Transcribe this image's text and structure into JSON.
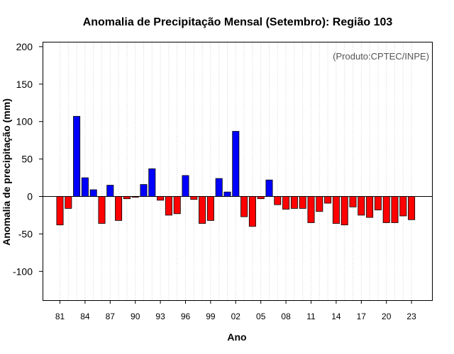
{
  "chart_data": {
    "type": "bar",
    "title": "Anomalia de Precipitação Mensal (Setembro): Região 103",
    "xlabel": "Ano",
    "ylabel": "Anomalia de precipitação (mm)",
    "credit": "(Produto:CPTEC/INPE)",
    "ylim": [
      -140,
      208
    ],
    "yticks": [
      -100,
      -50,
      0,
      50,
      100,
      150,
      200
    ],
    "xtick_labels": [
      "81",
      "84",
      "87",
      "90",
      "93",
      "96",
      "99",
      "02",
      "05",
      "08",
      "11",
      "14",
      "17",
      "20",
      "23"
    ],
    "grid": "vertical dotted",
    "positive_color": "#0000ff",
    "negative_color": "#ff0000",
    "categories": [
      "1981",
      "1982",
      "1983",
      "1984",
      "1985",
      "1986",
      "1987",
      "1988",
      "1989",
      "1990",
      "1991",
      "1992",
      "1993",
      "1994",
      "1995",
      "1996",
      "1997",
      "1998",
      "1999",
      "2000",
      "2001",
      "2002",
      "2003",
      "2004",
      "2005",
      "2006",
      "2007",
      "2008",
      "2009",
      "2010",
      "2011",
      "2012",
      "2013",
      "2014",
      "2015",
      "2016",
      "2017",
      "2018",
      "2019",
      "2020",
      "2021",
      "2022",
      "2023"
    ],
    "values": [
      -38,
      -16,
      107,
      25,
      9,
      -36,
      15,
      -32,
      -3,
      -1,
      16,
      37,
      -5,
      -25,
      -23,
      28,
      -4,
      -36,
      -32,
      24,
      6,
      87,
      -27,
      -40,
      -3,
      22,
      -11,
      -17,
      -16,
      -16,
      -35,
      -20,
      -9,
      -36,
      -38,
      -14,
      -25,
      -28,
      -18,
      -35,
      -35,
      -26,
      -31
    ]
  }
}
